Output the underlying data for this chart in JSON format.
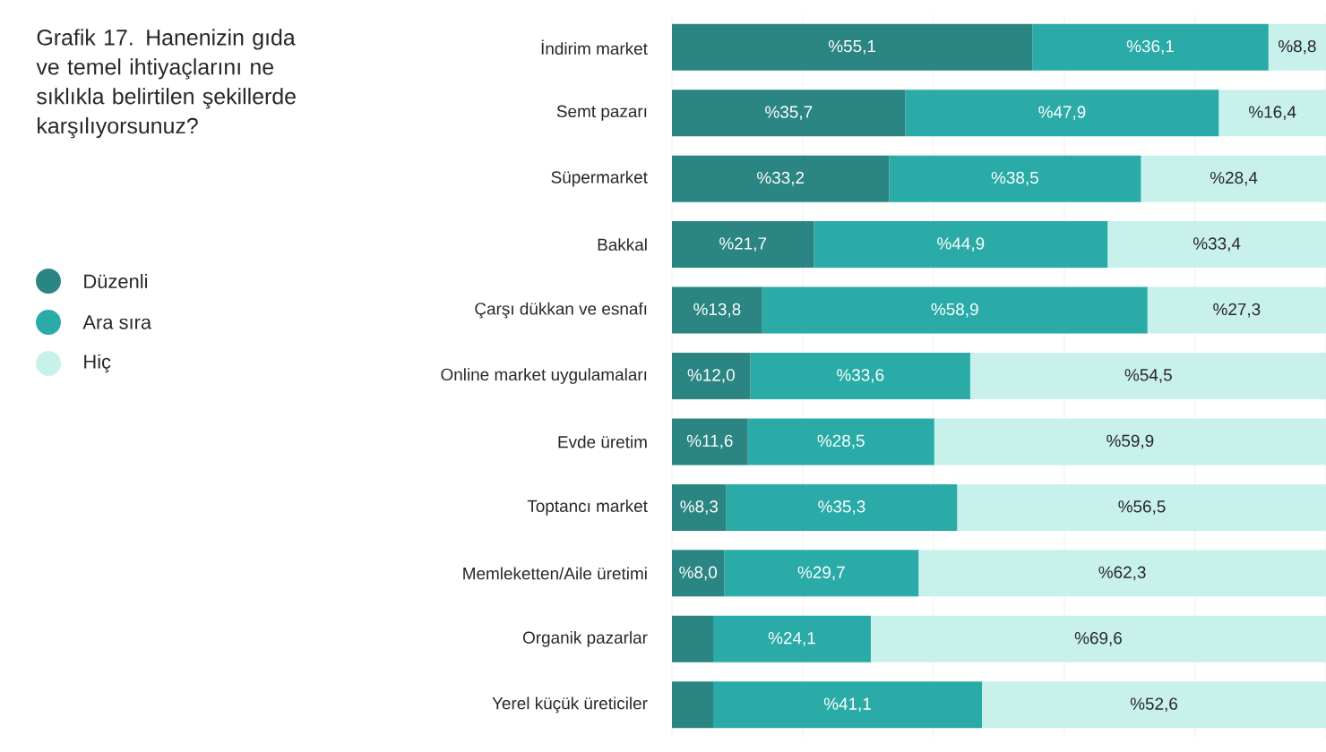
{
  "chart_data": {
    "type": "bar",
    "orientation": "horizontal",
    "stacked": true,
    "title": "Grafik 17. Hanenizin gıda ve temel ihtiyaçlarını ne sıklıkla belirtilen şekillerde karşılıyorsunuz?",
    "categories": [
      "İndirim market",
      "Semt pazarı",
      "Süpermarket",
      "Bakkal",
      "Çarşı dükkan ve esnafı",
      "Online market uygulamaları",
      "Evde üretim",
      "Toptancı market",
      "Memleketten/Aile üretimi",
      "Organik pazarlar",
      "Yerel küçük üreticiler"
    ],
    "series": [
      {
        "name": "Düzenli",
        "color": "#2b8582",
        "values": [
          55.1,
          35.7,
          33.2,
          21.7,
          13.8,
          12.0,
          11.6,
          8.3,
          8.0,
          6.3,
          6.3
        ],
        "value_labels": [
          "%55,1",
          "%35,7",
          "%33,2",
          "%21,7",
          "%13,8",
          "%12,0",
          "%11,6",
          "%8,3",
          "%8,0",
          null,
          null
        ]
      },
      {
        "name": "Ara sıra",
        "color": "#2aaba7",
        "values": [
          36.1,
          47.9,
          38.5,
          44.9,
          58.9,
          33.6,
          28.5,
          35.3,
          29.7,
          24.1,
          41.1
        ],
        "value_labels": [
          "%36,1",
          "%47,9",
          "%38,5",
          "%44,9",
          "%58,9",
          "%33,6",
          "%28,5",
          "%35,3",
          "%29,7",
          "%24,1",
          "%41,1"
        ]
      },
      {
        "name": "Hiç",
        "color": "#c8f1eb",
        "values": [
          8.8,
          16.4,
          28.4,
          33.4,
          27.3,
          54.5,
          59.9,
          56.5,
          62.3,
          69.6,
          52.6
        ],
        "value_labels": [
          "%8,8",
          "%16,4",
          "%28,4",
          "%33,4",
          "%27,3",
          "%54,5",
          "%59,9",
          "%56,5",
          "%62,3",
          "%69,6",
          "%52,6"
        ]
      }
    ],
    "xlim": [
      0,
      100
    ],
    "xticks": [
      {
        "value": 0,
        "label": null
      },
      {
        "value": 20,
        "label": null
      },
      {
        "value": 40,
        "label": null
      },
      {
        "value": 60,
        "label": null
      },
      {
        "value": 80,
        "label": null
      },
      {
        "value": 100,
        "label": null
      }
    ],
    "tick_labels": "y",
    "grid": "x",
    "legend": "left",
    "marker": "circle"
  }
}
